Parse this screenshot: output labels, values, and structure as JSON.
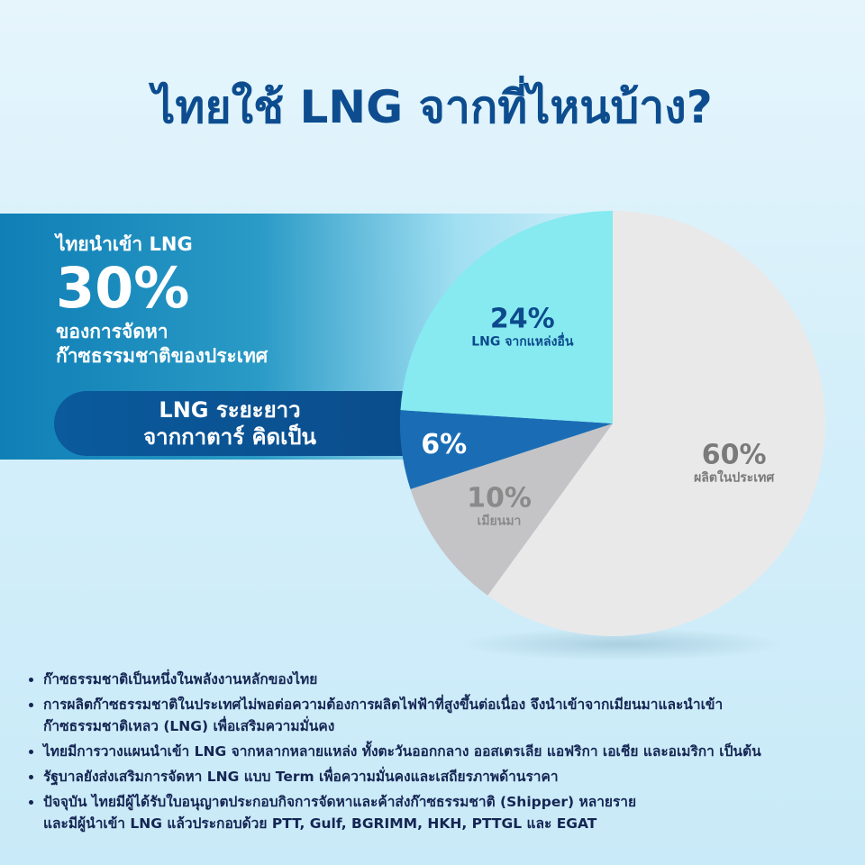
{
  "title": "ไทยใช้ LNG จากที่ไหนบ้าง?",
  "callout": {
    "lines": [
      "ไทยนำเข้า LNG",
      "30%",
      "ของการจัดหา",
      "ก๊าซธรรมชาติของประเทศ"
    ]
  },
  "pill": {
    "lines": [
      "LNG ระยะยาว",
      "จากกาตาร์ คิดเป็น"
    ]
  },
  "chart_data": {
    "type": "pie",
    "categories": [
      "ผลิตในประเทศ",
      "เมียนมา",
      null,
      "LNG จากแหล่งอื่น"
    ],
    "values": [
      60,
      10,
      6,
      24
    ],
    "value_labels": [
      "60%",
      "10%",
      "6%",
      "24%"
    ],
    "colors": [
      "#e9e9ea",
      "#c4c4c6",
      "#1a6db5",
      "#86eaf0"
    ],
    "label_colors": [
      "#7a7a7a",
      "#8a8a8a",
      "#ffffff",
      "#0c4a8c"
    ]
  },
  "bullets": [
    [
      "ก๊าซธรรมชาติเป็นหนึ่งในพลังงานหลักของไทย"
    ],
    [
      "การผลิตก๊าซธรรมชาติในประเทศไม่พอต่อความต้องการผลิตไฟฟ้าที่สูงขึ้นต่อเนื่อง จึงนำเข้าจากเมียนมาและนำเข้า",
      "ก๊าซธรรมชาติเหลว (LNG) เพื่อเสริมความมั่นคง"
    ],
    [
      "ไทยมีการวางแผนนำเข้า LNG จากหลากหลายแหล่ง ทั้งตะวันออกกลาง ออสเตรเลีย แอฟริกา เอเชีย และอเมริกา เป็นต้น"
    ],
    [
      "รัฐบาลยังส่งเสริมการจัดหา LNG แบบ Term เพื่อความมั่นคงและเสถียรภาพด้านราคา"
    ],
    [
      "ปัจจุบัน ไทยมีผู้ได้รับใบอนุญาตประกอบกิจการจัดหาและค้าส่งก๊าซธรรมชาติ (Shipper) หลายราย",
      "และมีผู้นำเข้า LNG แล้วประกอบด้วย PTT, Gulf, BGRIMM, HKH, PTTGL และ EGAT"
    ]
  ]
}
